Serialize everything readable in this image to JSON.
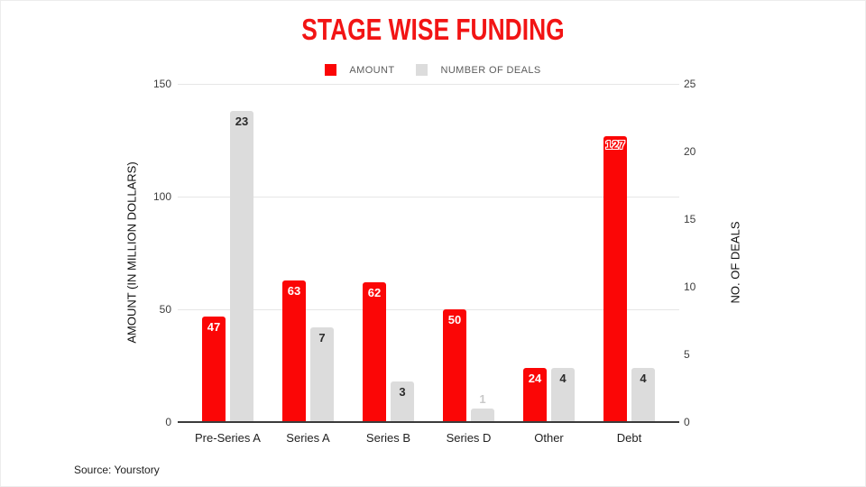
{
  "title": "STAGE WISE FUNDING",
  "title_color": "#f21414",
  "legend": {
    "items": [
      {
        "label": "AMOUNT",
        "color": "#fb0606"
      },
      {
        "label": "NUMBER OF DEALS",
        "color": "#dcdcdc"
      }
    ]
  },
  "axes": {
    "left": {
      "title": "AMOUNT (IN MILLION DOLLARS)",
      "ticks": [
        0,
        50,
        100,
        150
      ],
      "max": 150
    },
    "right": {
      "title": "NO. OF DEALS",
      "ticks": [
        0,
        5,
        10,
        15,
        20,
        25
      ],
      "max": 25
    }
  },
  "source": "Source: Yourstory",
  "chart_data": {
    "type": "bar",
    "title": "STAGE WISE FUNDING",
    "categories": [
      "Pre-Series A",
      "Series A",
      "Series B",
      "Series D",
      "Other",
      "Debt"
    ],
    "series": [
      {
        "name": "AMOUNT",
        "axis": "left",
        "color": "#fb0606",
        "values": [
          47,
          63,
          62,
          50,
          24,
          127
        ],
        "label_styles": [
          "inside",
          "inside",
          "inside",
          "inside",
          "inside",
          "outline"
        ],
        "label_color_inside": "#ffffff"
      },
      {
        "name": "NUMBER OF DEALS",
        "axis": "right",
        "color": "#dcdcdc",
        "values": [
          23,
          7,
          3,
          1,
          4,
          4
        ],
        "label_styles": [
          "inside",
          "inside",
          "inside",
          "above",
          "inside",
          "inside"
        ],
        "label_color_inside": "#2b2b2b"
      }
    ],
    "ylabel_left": "AMOUNT (IN MILLION DOLLARS)",
    "ylabel_right": "NO. OF DEALS",
    "left_ylim": [
      0,
      150
    ],
    "right_ylim": [
      0,
      25
    ],
    "grid": true,
    "legend_position": "top"
  }
}
